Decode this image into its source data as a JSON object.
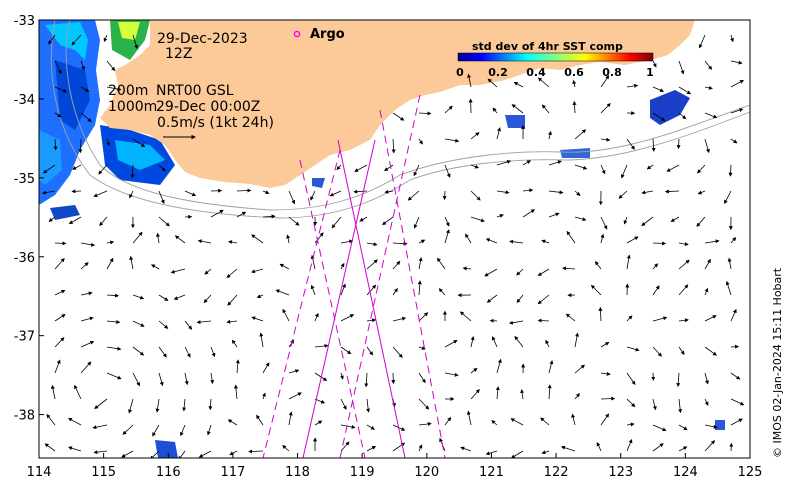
{
  "annotations": {
    "date": "29-Dec-2023",
    "hour": "12Z",
    "depth_line1": "200m",
    "depth_line2": "1000m",
    "product_line1": "NRT00 GSL",
    "product_line2": "29-Dec 00:00Z",
    "scale_label": "0.5m/s (1kt 24h)"
  },
  "legend": {
    "argo_label": "Argo",
    "argo_color": "#ff00ff"
  },
  "colorbar": {
    "title": "std dev of 4hr SST comp",
    "ticks": [
      "0",
      "0.2",
      "0.4",
      "0.6",
      "0.8",
      "1"
    ],
    "colormap": "jet"
  },
  "credit": "© IMOS 02-Jan-2024 15:11 Hobart",
  "map_axes": {
    "x_ticks": [
      "114",
      "115",
      "116",
      "117",
      "118",
      "119",
      "120",
      "121",
      "122",
      "123",
      "124",
      "125"
    ],
    "y_ticks": [
      "-33",
      "-34",
      "-35",
      "-36",
      "-37",
      "-38"
    ],
    "xlim": [
      114,
      125
    ],
    "ylim": [
      -38.55,
      -33
    ]
  },
  "colors": {
    "land": "#fcc998",
    "track": "#d000d0",
    "contour": "#a0a0a0"
  }
}
